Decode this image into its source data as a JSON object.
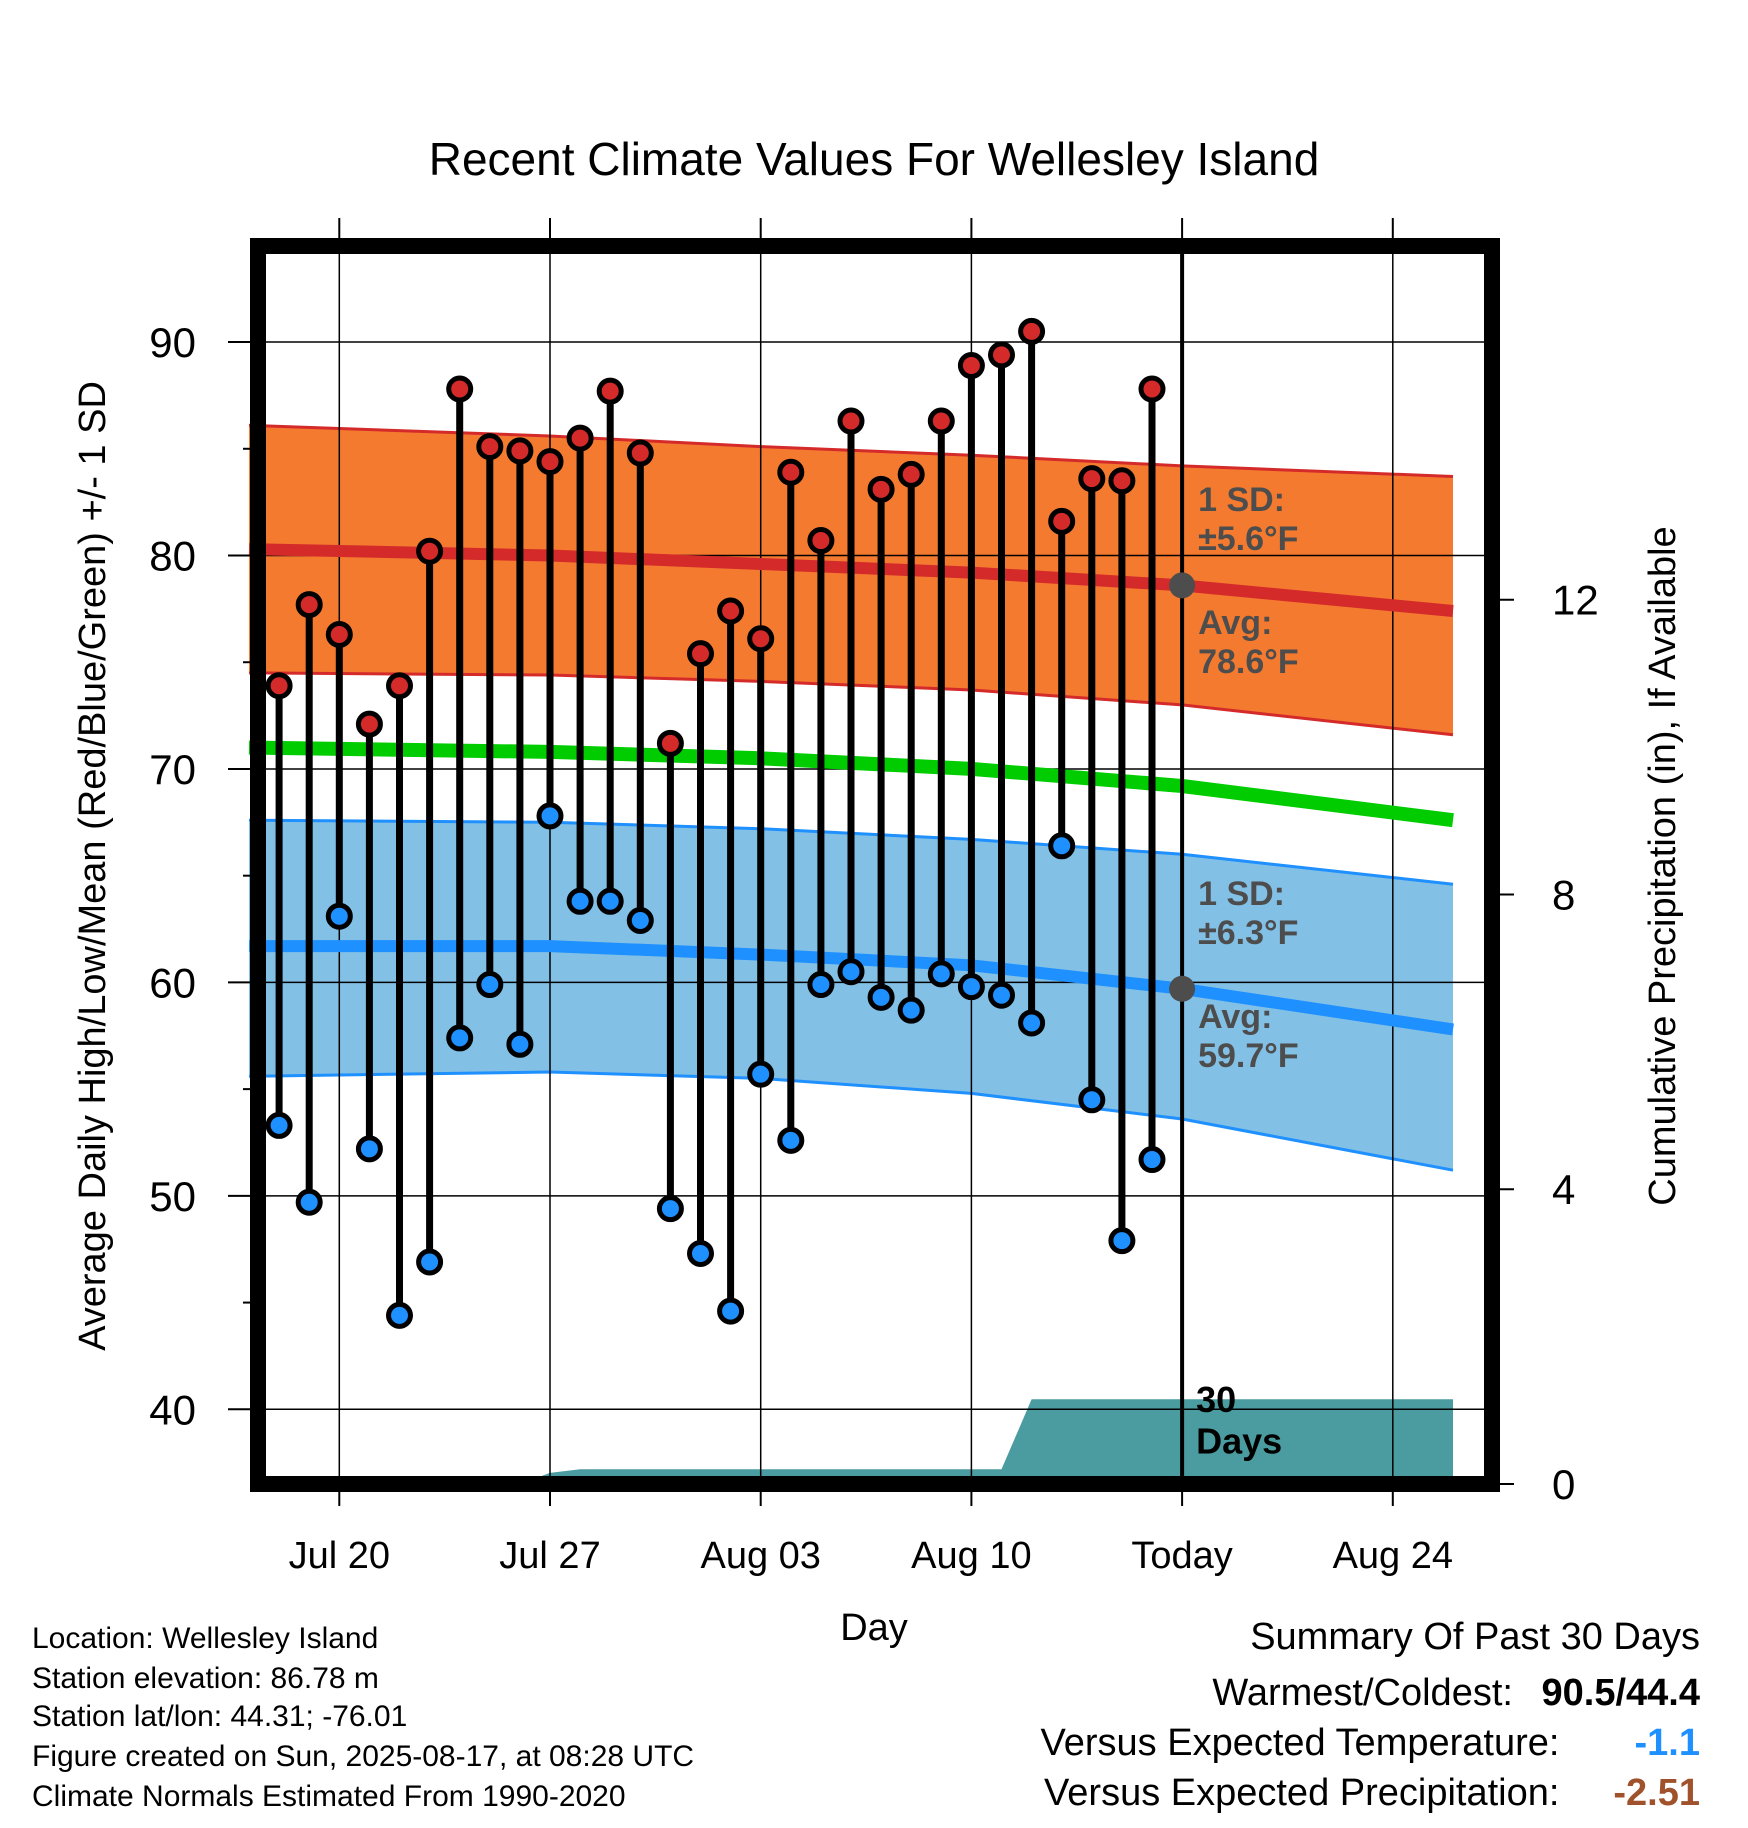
{
  "chart_data": {
    "type": "line",
    "title": "Recent Climate Values For Wellesley Island",
    "xlabel": "Day",
    "ylabel": "Average Daily High/Low/Mean (Red/Blue/Green) +/- 1 SD",
    "y2label": "Cumulative Precipitation (in), If Available",
    "ylim": [
      36.5,
      94.5
    ],
    "y2lim": [
      0,
      16.8
    ],
    "yticks": [
      40,
      50,
      60,
      70,
      80,
      90
    ],
    "y2ticks": [
      0,
      4,
      8,
      12
    ],
    "xlim": [
      "2025-07-17",
      "2025-08-26"
    ],
    "xticks": [
      {
        "date": "2025-07-20",
        "label": "Jul 20"
      },
      {
        "date": "2025-07-27",
        "label": "Jul 27"
      },
      {
        "date": "2025-08-03",
        "label": "Aug 03"
      },
      {
        "date": "2025-08-10",
        "label": "Aug 10"
      },
      {
        "date": "2025-08-17",
        "label": "Today"
      },
      {
        "date": "2025-08-24",
        "label": "Aug 24"
      }
    ],
    "grid": true,
    "today": "2025-08-17",
    "today_label": "30\nDays",
    "normals": {
      "dates": [
        "2025-07-17",
        "2025-07-27",
        "2025-08-03",
        "2025-08-10",
        "2025-08-17",
        "2025-08-26"
      ],
      "high_avg": [
        80.3,
        80.0,
        79.6,
        79.2,
        78.6,
        77.4
      ],
      "high_upper": [
        86.1,
        85.6,
        85.1,
        84.7,
        84.2,
        83.7
      ],
      "high_lower": [
        74.5,
        74.4,
        74.1,
        73.7,
        73.0,
        71.6
      ],
      "mean_avg": [
        71.0,
        70.8,
        70.5,
        70.0,
        69.2,
        67.6
      ],
      "low_avg": [
        61.7,
        61.7,
        61.3,
        60.8,
        59.7,
        57.8
      ],
      "low_upper": [
        67.6,
        67.5,
        67.2,
        66.7,
        66.0,
        64.6
      ],
      "low_lower": [
        55.6,
        55.8,
        55.5,
        54.8,
        53.6,
        51.2
      ]
    },
    "series": [
      {
        "name": "High",
        "dates": [
          "2025-07-18",
          "2025-07-19",
          "2025-07-20",
          "2025-07-21",
          "2025-07-22",
          "2025-07-23",
          "2025-07-24",
          "2025-07-25",
          "2025-07-26",
          "2025-07-27",
          "2025-07-28",
          "2025-07-29",
          "2025-07-30",
          "2025-07-31",
          "2025-08-01",
          "2025-08-02",
          "2025-08-03",
          "2025-08-04",
          "2025-08-05",
          "2025-08-06",
          "2025-08-07",
          "2025-08-08",
          "2025-08-09",
          "2025-08-10",
          "2025-08-11",
          "2025-08-12",
          "2025-08-13",
          "2025-08-14",
          "2025-08-15",
          "2025-08-16"
        ],
        "values": [
          73.9,
          77.7,
          76.3,
          72.1,
          73.9,
          80.2,
          87.8,
          85.1,
          84.9,
          84.4,
          85.5,
          87.7,
          84.8,
          71.2,
          75.4,
          77.4,
          76.1,
          83.9,
          80.7,
          86.3,
          83.1,
          83.8,
          86.3,
          88.9,
          89.4,
          90.5,
          81.6,
          83.6,
          83.5,
          87.8
        ]
      },
      {
        "name": "Low",
        "dates": [
          "2025-07-18",
          "2025-07-19",
          "2025-07-20",
          "2025-07-21",
          "2025-07-22",
          "2025-07-23",
          "2025-07-24",
          "2025-07-25",
          "2025-07-26",
          "2025-07-27",
          "2025-07-28",
          "2025-07-29",
          "2025-07-30",
          "2025-07-31",
          "2025-08-01",
          "2025-08-02",
          "2025-08-03",
          "2025-08-04",
          "2025-08-05",
          "2025-08-06",
          "2025-08-07",
          "2025-08-08",
          "2025-08-09",
          "2025-08-10",
          "2025-08-11",
          "2025-08-12",
          "2025-08-13",
          "2025-08-14",
          "2025-08-15",
          "2025-08-16"
        ],
        "values": [
          53.3,
          49.7,
          63.1,
          52.2,
          44.4,
          46.9,
          57.4,
          59.9,
          57.1,
          67.8,
          63.8,
          63.8,
          62.9,
          49.4,
          47.3,
          44.6,
          55.7,
          52.6,
          59.9,
          60.5,
          59.3,
          58.7,
          60.4,
          59.8,
          59.4,
          58.1,
          66.4,
          54.5,
          47.9,
          51.7
        ]
      },
      {
        "name": "Cumulative Precipitation",
        "dates": [
          "2025-07-17",
          "2025-07-26",
          "2025-07-27",
          "2025-07-28",
          "2025-08-11",
          "2025-08-12",
          "2025-08-26"
        ],
        "values": [
          0,
          0,
          0.15,
          0.2,
          0.2,
          1.15,
          1.15
        ]
      }
    ],
    "annotations": {
      "high_sd": "1 SD:\n±5.6°F",
      "high_avg": "Avg:\n78.6°F",
      "low_sd": "1 SD:\n±6.3°F",
      "low_avg": "Avg:\n59.7°F"
    },
    "colors": {
      "high_band": "#f47a30",
      "high_line": "#d42a2a",
      "mean_line": "#00cc00",
      "low_band": "#82c0e6",
      "low_line": "#1e90ff",
      "precip": "#4a9ca0",
      "high_dot": "#d42a2a",
      "low_dot": "#1e90ff",
      "annotation": "#4d4d4d"
    }
  },
  "footer": {
    "location": "Location: Wellesley Island",
    "elevation": "Station elevation: 86.78 m",
    "latlon": "Station lat/lon: 44.31; -76.01",
    "created": "Figure created on Sun, 2025-08-17, at 08:28 UTC",
    "normals": "Climate Normals Estimated From 1990-2020"
  },
  "summary": {
    "title": "Summary Of Past 30 Days",
    "warmest_label": "Warmest/Coldest:",
    "warmest_value": "90.5/44.4",
    "temp_label": "Versus Expected Temperature:",
    "temp_value": "-1.1",
    "temp_color": "#1e90ff",
    "precip_label": "Versus Expected Precipitation:",
    "precip_value": "-2.51",
    "precip_color": "#a0522d"
  }
}
